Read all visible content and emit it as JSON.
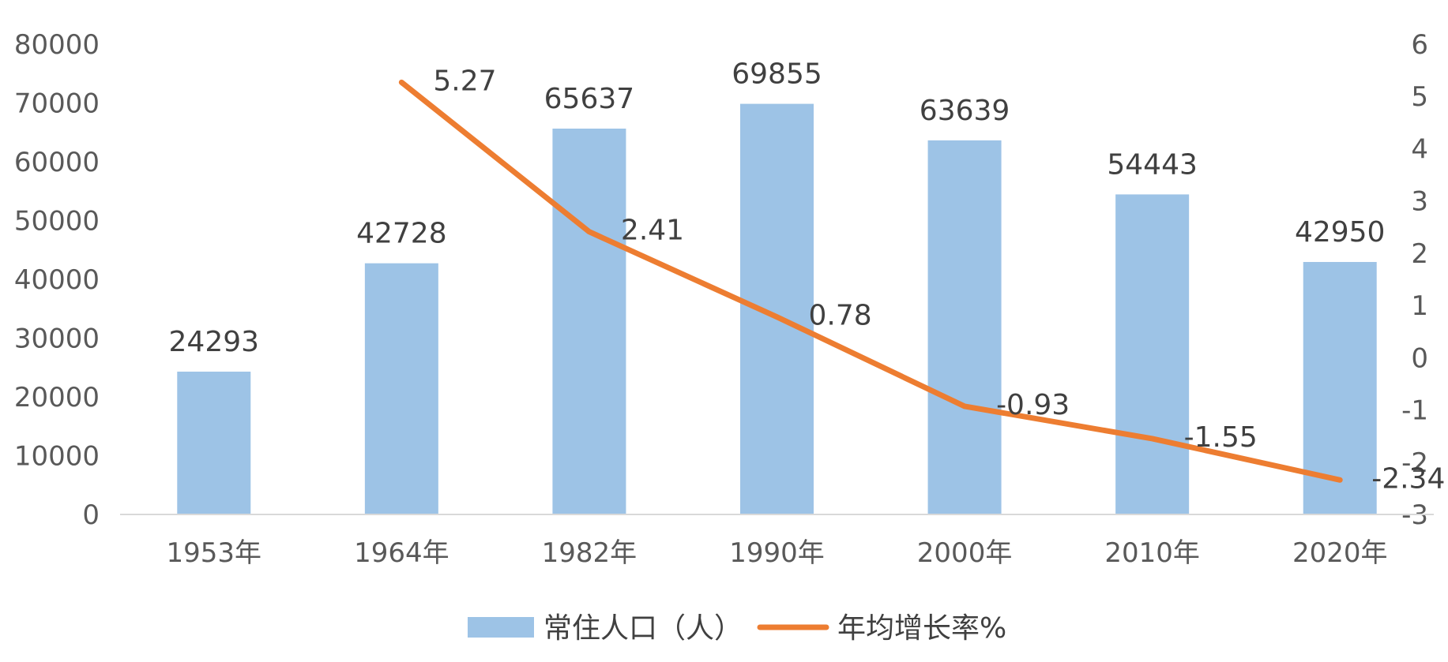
{
  "chart_data": {
    "type": "bar",
    "categories": [
      "1953年",
      "1964年",
      "1982年",
      "1990年",
      "2000年",
      "2010年",
      "2020年"
    ],
    "series": [
      {
        "name": "常住人口（人）",
        "type": "bar",
        "axis": "left",
        "values": [
          24293,
          42728,
          65637,
          69855,
          63639,
          54443,
          42950
        ],
        "labels": [
          "24293",
          "42728",
          "65637",
          "69855",
          "63639",
          "54443",
          "42950"
        ],
        "color": "#9DC3E6"
      },
      {
        "name": "年均增长率%",
        "type": "line",
        "axis": "right",
        "values": [
          null,
          5.27,
          2.41,
          0.78,
          -0.93,
          -1.55,
          -2.34
        ],
        "labels": [
          "",
          "5.27",
          "2.41",
          "0.78",
          "-0.93",
          "-1.55",
          "-2.34"
        ],
        "color": "#ED7D31"
      }
    ],
    "left_axis": {
      "ylim": [
        0,
        80000
      ],
      "ticks": [
        "0",
        "10000",
        "20000",
        "30000",
        "40000",
        "50000",
        "60000",
        "70000",
        "80000"
      ]
    },
    "right_axis": {
      "ylim": [
        -3,
        6
      ],
      "ticks": [
        "-3",
        "-2",
        "-1",
        "0",
        "1",
        "2",
        "3",
        "4",
        "5",
        "6"
      ]
    },
    "legend": {
      "position": "bottom",
      "items": [
        "常住人口（人）",
        "年均增长率%"
      ]
    },
    "grid": false
  }
}
